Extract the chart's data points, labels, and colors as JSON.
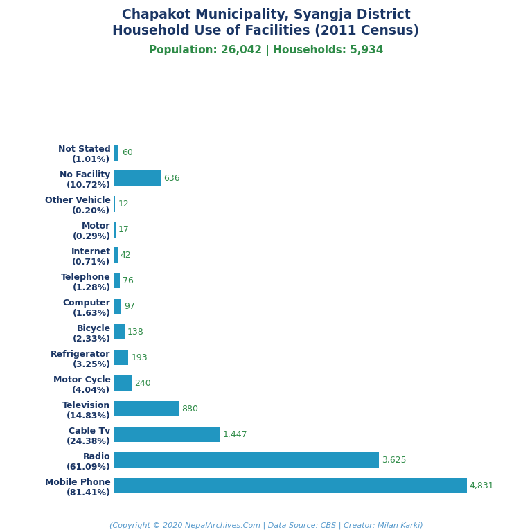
{
  "title_line1": "Chapakot Municipality, Syangja District",
  "title_line2": "Household Use of Facilities (2011 Census)",
  "subtitle": "Population: 26,042 | Households: 5,934",
  "title_color": "#1a3564",
  "subtitle_color": "#2e8b47",
  "copyright": "(Copyright © 2020 NepalArchives.Com | Data Source: CBS | Creator: Milan Karki)",
  "categories": [
    "Not Stated\n(1.01%)",
    "No Facility\n(10.72%)",
    "Other Vehicle\n(0.20%)",
    "Motor\n(0.29%)",
    "Internet\n(0.71%)",
    "Telephone\n(1.28%)",
    "Computer\n(1.63%)",
    "Bicycle\n(2.33%)",
    "Refrigerator\n(3.25%)",
    "Motor Cycle\n(4.04%)",
    "Television\n(14.83%)",
    "Cable Tv\n(24.38%)",
    "Radio\n(61.09%)",
    "Mobile Phone\n(81.41%)"
  ],
  "values": [
    60,
    636,
    12,
    17,
    42,
    76,
    97,
    138,
    193,
    240,
    880,
    1447,
    3625,
    4831
  ],
  "value_labels": [
    "60",
    "636",
    "12",
    "17",
    "42",
    "76",
    "97",
    "138",
    "193",
    "240",
    "880",
    "1,447",
    "3,625",
    "4,831"
  ],
  "bar_color": "#2196C1",
  "value_label_color": "#2e8b47",
  "ylabel_color": "#1a3564",
  "background_color": "#ffffff",
  "xlim": [
    0,
    5400
  ],
  "bar_height": 0.6,
  "title_fontsize": 13.5,
  "subtitle_fontsize": 11,
  "label_fontsize": 9,
  "value_fontsize": 9,
  "copyright_fontsize": 8
}
